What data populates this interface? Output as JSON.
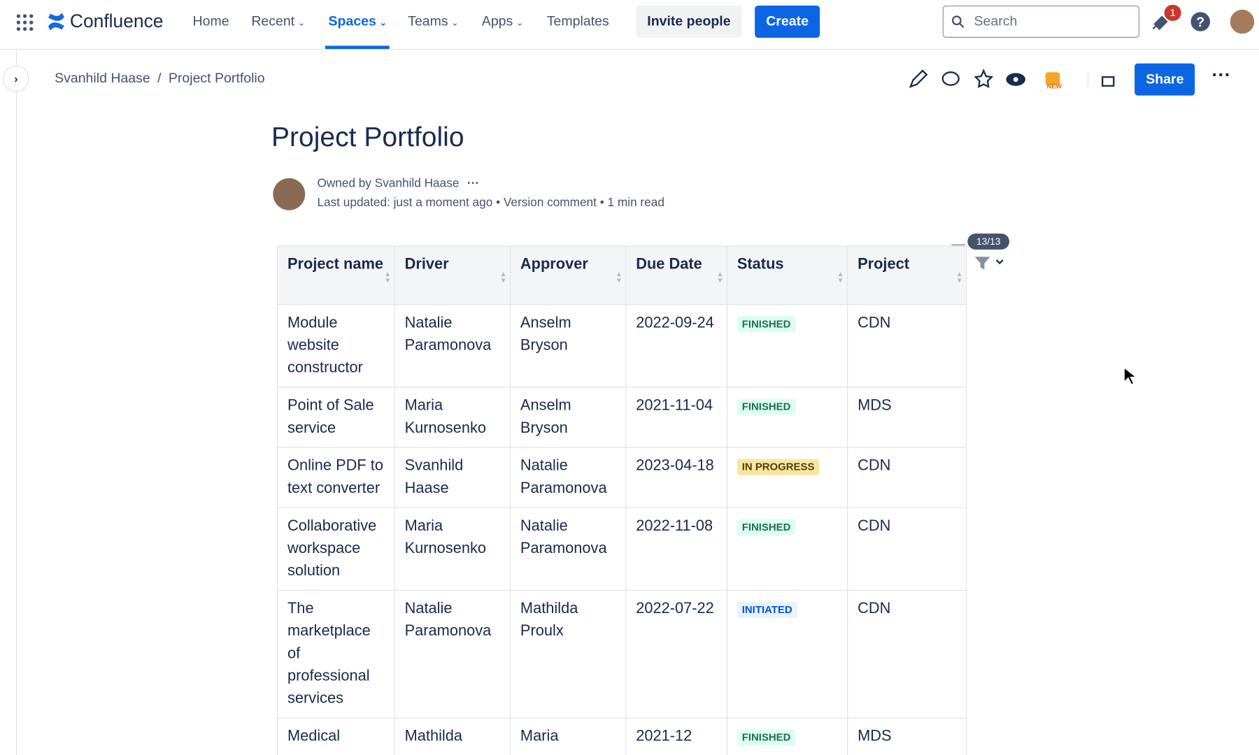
{
  "nav": {
    "product": "Confluence",
    "items": [
      "Home",
      "Recent",
      "Spaces",
      "Teams",
      "Apps",
      "Templates"
    ],
    "invite": "Invite people",
    "create": "Create",
    "search": "Search",
    "notifications": "1"
  },
  "breadcrumb": [
    "Svanhild Haase",
    "Project Portfolio"
  ],
  "actions": {
    "share": "Share",
    "new_badge": "NEW"
  },
  "page": {
    "title": "Project Portfolio",
    "owner": "Owned by Svanhild Haase",
    "updated": "Last updated: just a moment ago",
    "version": "Version comment",
    "read": "1 min read"
  },
  "table": {
    "filter_count": "13/13",
    "headers": [
      "Project name",
      "Driver",
      "Approver",
      "Due Date",
      "Status",
      "Project"
    ],
    "rows": [
      [
        "Module website constructor",
        "Natalie Paramonova",
        "Anselm Bryson",
        "2022-09-24",
        {
          "label": "FINISHED",
          "color": "#dcfff1",
          "text_color": "#216e4e"
        },
        "CDN"
      ],
      [
        "Point of Sale service",
        "Maria Kurnosenko",
        "Anselm Bryson",
        "2021-11-04",
        {
          "label": "FINISHED",
          "color": "#dcfff1",
          "text_color": "#216e4e"
        },
        "MDS"
      ],
      [
        "Online PDF to text converter",
        "Svanhild Haase",
        "Natalie Paramonova",
        "2023-04-18",
        {
          "label": "IN PROGRESS",
          "color": "#f8e6a0",
          "text_color": "#533f04"
        },
        "CDN"
      ],
      [
        "Collaborative workspace solution",
        "Maria Kurnosenko",
        "Natalie Paramonova",
        "2022-11-08",
        {
          "label": "FINISHED",
          "color": "#dcfff1",
          "text_color": "#216e4e"
        },
        "CDN"
      ],
      [
        "The marketplace of professional services",
        "Natalie Paramonova",
        "Mathilda Proulx",
        "2022-07-22",
        {
          "label": "INITIATED",
          "color": "#e9f2ff",
          "text_color": "#0055cc"
        },
        "CDN"
      ],
      [
        "Medical",
        "Mathilda",
        "Maria",
        "2021-12",
        {
          "label": "FINISHED",
          "color": "#dcfff1",
          "text_color": "#216e4e"
        },
        "MDS"
      ]
    ]
  }
}
